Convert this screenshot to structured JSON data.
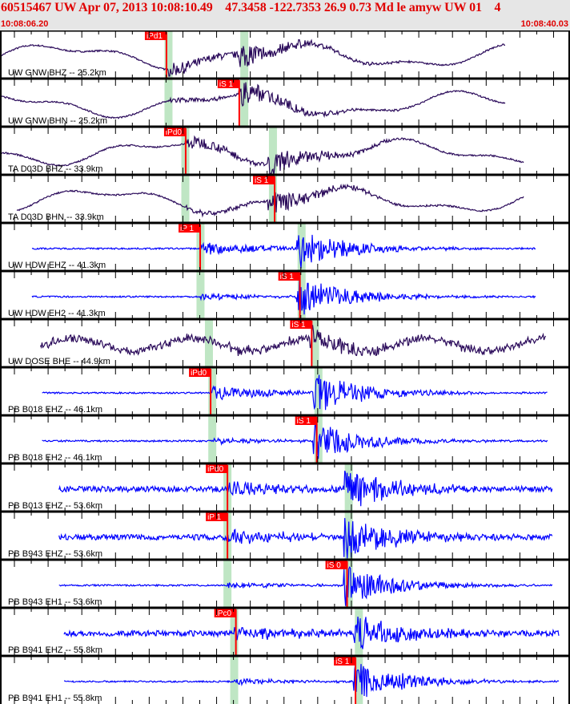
{
  "header": {
    "title": "60515467 UW Apr 07, 2013 10:08:10.49    47.3458 -122.7353 26.9 0.73 Md le amyw UW 01    4",
    "start_time": "10:08:06.20",
    "end_time": "10:08:40.03"
  },
  "time_window_seconds": 33.83,
  "colors": {
    "broadband": "#2a0a5a",
    "short_period": "#0000ff",
    "pick": "#ff0000",
    "predicted": "#bfe6c4",
    "header_bg": "#e6e6e6",
    "header_text": "#e00000"
  },
  "traces": [
    {
      "label": "UW GNW BHZ -- 25.2km",
      "pick": "iPd1",
      "pick_time": 9.88,
      "p_pred": 10.0,
      "s_pred": 14.5,
      "type": "bb",
      "start": 0.0,
      "end": 30.0,
      "phase": "P"
    },
    {
      "label": "UW GNW BHN -- 25.2km",
      "pick": "iS 1",
      "pick_time": 14.2,
      "p_pred": 10.0,
      "s_pred": 14.5,
      "type": "bb",
      "start": 0.0,
      "end": 30.0,
      "phase": "S"
    },
    {
      "label": "TA D03D BHZ -- 33.9km",
      "pick": "iPd0",
      "pick_time": 11.02,
      "p_pred": 11.0,
      "s_pred": 16.2,
      "type": "bb",
      "start": 0.0,
      "end": 31.1,
      "phase": "P"
    },
    {
      "label": "TA D03D BHN -- 33.9km",
      "pick": "iS 1",
      "pick_time": 16.3,
      "p_pred": 11.0,
      "s_pred": 16.2,
      "type": "bb",
      "start": 1.0,
      "end": 31.1,
      "phase": "S"
    },
    {
      "label": "UW HDW EHZ -- 41.3km",
      "pick": "iP 1",
      "pick_time": 11.88,
      "p_pred": 11.9,
      "s_pred": 17.9,
      "type": "sp",
      "start": 1.9,
      "end": 31.8,
      "phase": "P"
    },
    {
      "label": "UW HDW EH2 -- 41.3km",
      "pick": "iS 1",
      "pick_time": 17.8,
      "p_pred": 11.9,
      "s_pred": 17.9,
      "type": "sp",
      "start": 1.9,
      "end": 31.8,
      "phase": "S"
    },
    {
      "label": "UW DOSE BHE -- 44.9km",
      "pick": "iS 1",
      "pick_time": 18.5,
      "p_pred": 12.4,
      "s_pred": 18.7,
      "type": "bbn",
      "start": 2.4,
      "end": 32.4,
      "phase": "S"
    },
    {
      "label": "PB B018 EHZ -- 46.1km",
      "pick": "iPd0",
      "pick_time": 12.5,
      "p_pred": 12.6,
      "s_pred": 18.9,
      "type": "sp",
      "start": 2.5,
      "end": 32.5,
      "phase": "P"
    },
    {
      "label": "PB B018 EH2 -- 46.1km",
      "pick": "iS 1",
      "pick_time": 18.8,
      "p_pred": 12.6,
      "s_pred": 18.9,
      "type": "sp",
      "start": 2.5,
      "end": 32.5,
      "phase": "S"
    },
    {
      "label": "PB B013 EHZ -- 53.6km",
      "pick": "iPd0",
      "pick_time": 13.5,
      "p_pred": 13.5,
      "s_pred": 20.7,
      "type": "spn",
      "start": 3.5,
      "end": 32.8,
      "phase": "P"
    },
    {
      "label": "PB B943 EHZ -- 53.6km",
      "pick": "iP 1",
      "pick_time": 13.5,
      "p_pred": 13.5,
      "s_pred": 20.7,
      "type": "spn",
      "start": 3.5,
      "end": 32.8,
      "phase": "P"
    },
    {
      "label": "PB B943 EH1 -- 53.6km",
      "pick": "iS 0",
      "pick_time": 20.6,
      "p_pred": 13.5,
      "s_pred": 20.7,
      "type": "sp",
      "start": 3.5,
      "end": 32.8,
      "phase": "S"
    },
    {
      "label": "PB B941 EHZ -- 55.8km",
      "pick": "iPc0",
      "pick_time": 14.0,
      "p_pred": 13.9,
      "s_pred": 21.3,
      "type": "spn",
      "start": 3.8,
      "end": 33.2,
      "phase": "P"
    },
    {
      "label": "PB B941 EH1 -- 55.8km",
      "pick": "iS 1",
      "pick_time": 21.1,
      "p_pred": 13.9,
      "s_pred": 21.3,
      "type": "sp",
      "start": 3.8,
      "end": 33.2,
      "phase": "S"
    }
  ]
}
